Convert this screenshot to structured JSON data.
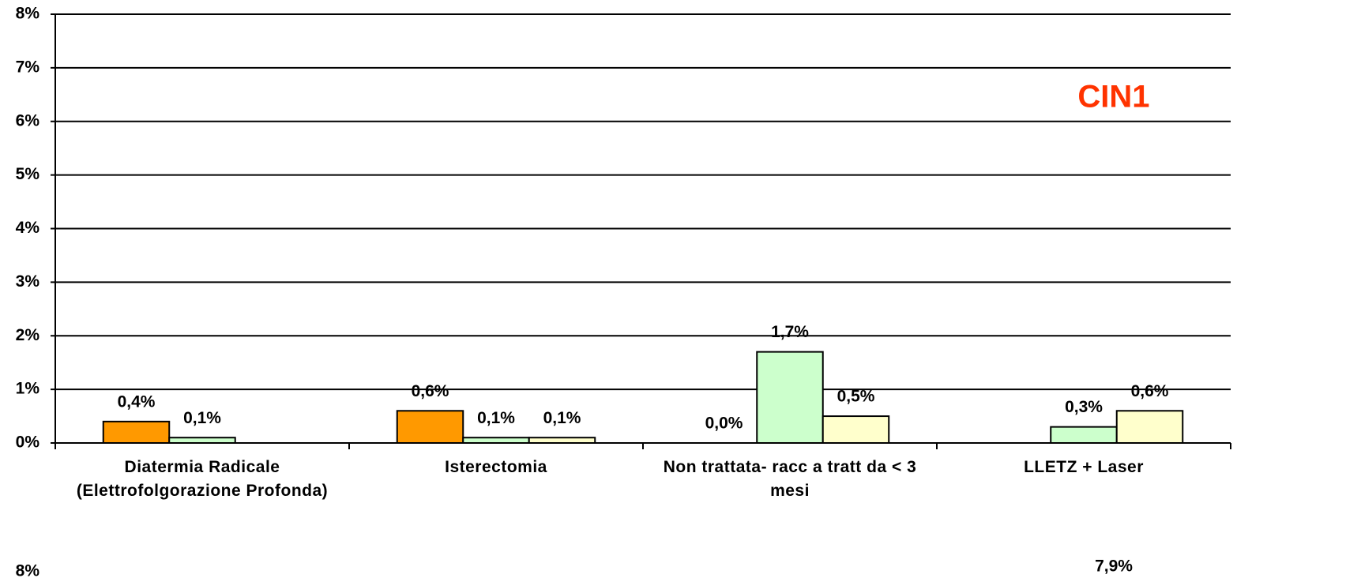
{
  "chart_data": {
    "type": "bar",
    "title": "CIN1",
    "categories": [
      "Diatermia Radicale (Elettrofolgorazione Profonda)",
      "Isterectomia",
      "Non trattata- racc a tratt da < 3 mesi",
      "LLETZ + Laser"
    ],
    "series": [
      {
        "color": "#ff9900",
        "values": [
          0.4,
          0.6,
          0.0,
          null
        ],
        "value_labels": [
          "0,4%",
          "0,6%",
          "0,0%",
          null
        ]
      },
      {
        "color": "#ccffcc",
        "values": [
          0.1,
          0.1,
          1.7,
          0.3
        ],
        "value_labels": [
          "0,1%",
          "0,1%",
          "1,7%",
          "0,3%"
        ]
      },
      {
        "color": "#ffffcc",
        "values": [
          null,
          0.1,
          0.5,
          0.6
        ],
        "value_labels": [
          null,
          "0,1%",
          "0,5%",
          "0,6%"
        ]
      }
    ],
    "ylim": [
      0,
      8
    ],
    "yticks": [
      {
        "value": 0,
        "label": "0%"
      },
      {
        "value": 1,
        "label": "1%"
      },
      {
        "value": 2,
        "label": "2%"
      },
      {
        "value": 3,
        "label": "3%"
      },
      {
        "value": 4,
        "label": "4%"
      },
      {
        "value": 5,
        "label": "5%"
      },
      {
        "value": 6,
        "label": "6%"
      },
      {
        "value": 7,
        "label": "7%"
      },
      {
        "value": 8,
        "label": "8%"
      }
    ],
    "grid": true,
    "annotations": [
      "8%",
      "7,9%"
    ]
  }
}
